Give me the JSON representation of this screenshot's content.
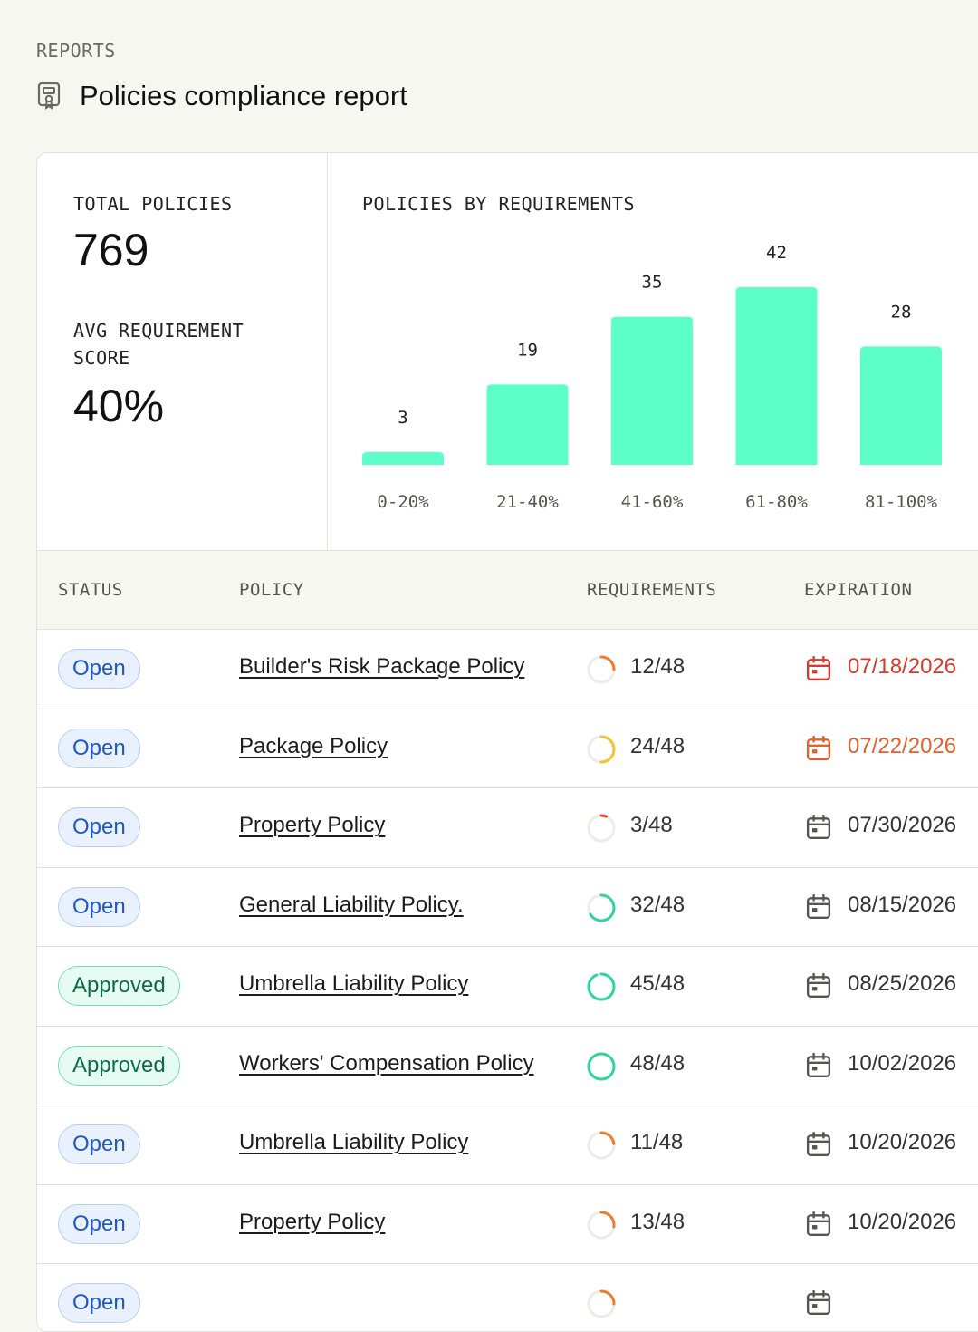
{
  "breadcrumb": "REPORTS",
  "page_title": "Policies compliance report",
  "stats": {
    "total_label": "TOTAL POLICIES",
    "total_value": "769",
    "avg_label": "AVG REQUIREMENT SCORE",
    "avg_value": "40%"
  },
  "chart_data": {
    "type": "bar",
    "title": "POLICIES BY REQUIREMENTS",
    "categories": [
      "0-20%",
      "21-40%",
      "41-60%",
      "61-80%",
      "81-100%"
    ],
    "values": [
      3,
      19,
      35,
      42,
      28
    ],
    "bar_color": "#5cffc8",
    "grid": false
  },
  "table": {
    "columns": [
      "STATUS",
      "POLICY",
      "REQUIREMENTS",
      "EXPIRATION"
    ],
    "rows": [
      {
        "status": "Open",
        "status_type": "open",
        "policy": "Builder's Risk Package Policy",
        "req_done": 12,
        "req_total": 48,
        "req_label": "12/48",
        "ring_color": "#f07a2e",
        "expiration": "07/18/2026",
        "exp_color": "#d63a2c"
      },
      {
        "status": "Open",
        "status_type": "open",
        "policy": "Package Policy",
        "req_done": 24,
        "req_total": 48,
        "req_label": "24/48",
        "ring_color": "#f2c230",
        "expiration": "07/22/2026",
        "exp_color": "#e0622a"
      },
      {
        "status": "Open",
        "status_type": "open",
        "policy": "Property Policy",
        "req_done": 3,
        "req_total": 48,
        "req_label": "3/48",
        "ring_color": "#e8483a",
        "expiration": "07/30/2026",
        "exp_color": "#333333"
      },
      {
        "status": "Open",
        "status_type": "open",
        "policy": "General Liability Policy.",
        "req_done": 32,
        "req_total": 48,
        "req_label": "32/48",
        "ring_color": "#2fd59a",
        "expiration": "08/15/2026",
        "exp_color": "#333333"
      },
      {
        "status": "Approved",
        "status_type": "approved",
        "policy": "Umbrella Liability Policy",
        "req_done": 45,
        "req_total": 48,
        "req_label": "45/48",
        "ring_color": "#2fd59a",
        "expiration": "08/25/2026",
        "exp_color": "#333333"
      },
      {
        "status": "Approved",
        "status_type": "approved",
        "policy": "Workers' Compensation Policy",
        "req_done": 48,
        "req_total": 48,
        "req_label": "48/48",
        "ring_color": "#2fd59a",
        "expiration": "10/02/2026",
        "exp_color": "#333333"
      },
      {
        "status": "Open",
        "status_type": "open",
        "policy": "Umbrella Liability Policy",
        "req_done": 11,
        "req_total": 48,
        "req_label": "11/48",
        "ring_color": "#f07a2e",
        "expiration": "10/20/2026",
        "exp_color": "#333333"
      },
      {
        "status": "Open",
        "status_type": "open",
        "policy": "Property Policy",
        "req_done": 13,
        "req_total": 48,
        "req_label": "13/48",
        "ring_color": "#f07a2e",
        "expiration": "10/20/2026",
        "exp_color": "#333333"
      },
      {
        "status": "Open",
        "status_type": "open",
        "policy": "",
        "req_done": 12,
        "req_total": 48,
        "req_label": "",
        "ring_color": "#f07a2e",
        "expiration": "",
        "exp_color": "#333333"
      }
    ]
  },
  "icons": {
    "report": "certificate-icon",
    "calendar": "calendar-icon"
  }
}
